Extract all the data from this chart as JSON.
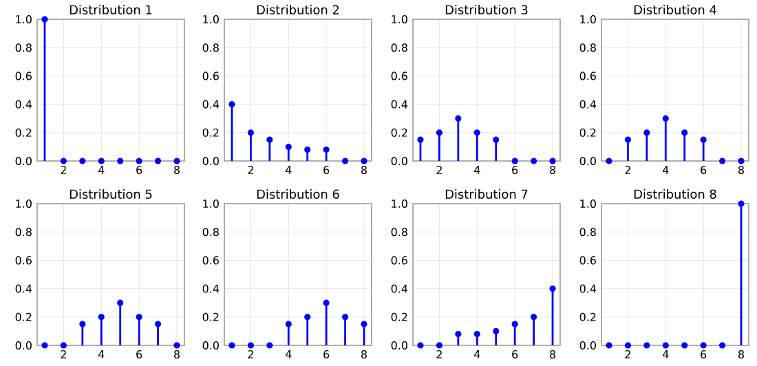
{
  "chart_data": [
    {
      "type": "lollipop",
      "title": "Distribution 1",
      "x": [
        1,
        2,
        3,
        4,
        5,
        6,
        7,
        8
      ],
      "values": [
        1.0,
        0,
        0,
        0,
        0,
        0,
        0,
        0
      ],
      "color": "#0000ff",
      "marker": "circle",
      "xlim": [
        0.6,
        8.4
      ],
      "xticks": [
        2,
        4,
        6,
        8
      ],
      "ylim": [
        0,
        1
      ],
      "yticks": [
        {
          "value": 0,
          "label": "0.0"
        },
        {
          "value": 0.2,
          "label": "0.2"
        },
        {
          "value": 0.4,
          "label": "0.4"
        },
        {
          "value": 0.6,
          "label": "0.6"
        },
        {
          "value": 0.8,
          "label": "0.8"
        },
        {
          "value": 1,
          "label": "1.0"
        }
      ],
      "grid": true
    },
    {
      "type": "lollipop",
      "title": "Distribution 2",
      "x": [
        1,
        2,
        3,
        4,
        5,
        6,
        7,
        8
      ],
      "values": [
        0.4,
        0.2,
        0.15,
        0.1,
        0.08,
        0.08,
        0,
        0
      ],
      "color": "#0000ff",
      "marker": "circle",
      "xlim": [
        0.6,
        8.4
      ],
      "xticks": [
        2,
        4,
        6,
        8
      ],
      "ylim": [
        0,
        1
      ],
      "yticks": [
        {
          "value": 0,
          "label": "0.0"
        },
        {
          "value": 0.2,
          "label": "0.2"
        },
        {
          "value": 0.4,
          "label": "0.4"
        },
        {
          "value": 0.6,
          "label": "0.6"
        },
        {
          "value": 0.8,
          "label": "0.8"
        },
        {
          "value": 1,
          "label": "1.0"
        }
      ],
      "grid": true
    },
    {
      "type": "lollipop",
      "title": "Distribution 3",
      "x": [
        1,
        2,
        3,
        4,
        5,
        6,
        7,
        8
      ],
      "values": [
        0.15,
        0.2,
        0.3,
        0.2,
        0.15,
        0,
        0,
        0
      ],
      "color": "#0000ff",
      "marker": "circle",
      "xlim": [
        0.6,
        8.4
      ],
      "xticks": [
        2,
        4,
        6,
        8
      ],
      "ylim": [
        0,
        1
      ],
      "yticks": [
        {
          "value": 0,
          "label": "0.0"
        },
        {
          "value": 0.2,
          "label": "0.2"
        },
        {
          "value": 0.4,
          "label": "0.4"
        },
        {
          "value": 0.6,
          "label": "0.6"
        },
        {
          "value": 0.8,
          "label": "0.8"
        },
        {
          "value": 1,
          "label": "1.0"
        }
      ],
      "grid": true
    },
    {
      "type": "lollipop",
      "title": "Distribution 4",
      "x": [
        1,
        2,
        3,
        4,
        5,
        6,
        7,
        8
      ],
      "values": [
        0,
        0.15,
        0.2,
        0.3,
        0.2,
        0.15,
        0,
        0
      ],
      "color": "#0000ff",
      "marker": "circle",
      "xlim": [
        0.6,
        8.4
      ],
      "xticks": [
        2,
        4,
        6,
        8
      ],
      "ylim": [
        0,
        1
      ],
      "yticks": [
        {
          "value": 0,
          "label": "0.0"
        },
        {
          "value": 0.2,
          "label": "0.2"
        },
        {
          "value": 0.4,
          "label": "0.4"
        },
        {
          "value": 0.6,
          "label": "0.6"
        },
        {
          "value": 0.8,
          "label": "0.8"
        },
        {
          "value": 1,
          "label": "1.0"
        }
      ],
      "grid": true
    },
    {
      "type": "lollipop",
      "title": "Distribution 5",
      "x": [
        1,
        2,
        3,
        4,
        5,
        6,
        7,
        8
      ],
      "values": [
        0,
        0,
        0.15,
        0.2,
        0.3,
        0.2,
        0.15,
        0
      ],
      "color": "#0000ff",
      "marker": "circle",
      "xlim": [
        0.6,
        8.4
      ],
      "xticks": [
        2,
        4,
        6,
        8
      ],
      "ylim": [
        0,
        1
      ],
      "yticks": [
        {
          "value": 0,
          "label": "0.0"
        },
        {
          "value": 0.2,
          "label": "0.2"
        },
        {
          "value": 0.4,
          "label": "0.4"
        },
        {
          "value": 0.6,
          "label": "0.6"
        },
        {
          "value": 0.8,
          "label": "0.8"
        },
        {
          "value": 1,
          "label": "1.0"
        }
      ],
      "grid": true
    },
    {
      "type": "lollipop",
      "title": "Distribution 6",
      "x": [
        1,
        2,
        3,
        4,
        5,
        6,
        7,
        8
      ],
      "values": [
        0,
        0,
        0,
        0.15,
        0.2,
        0.3,
        0.2,
        0.15
      ],
      "color": "#0000ff",
      "marker": "circle",
      "xlim": [
        0.6,
        8.4
      ],
      "xticks": [
        2,
        4,
        6,
        8
      ],
      "ylim": [
        0,
        1
      ],
      "yticks": [
        {
          "value": 0,
          "label": "0.0"
        },
        {
          "value": 0.2,
          "label": "0.2"
        },
        {
          "value": 0.4,
          "label": "0.4"
        },
        {
          "value": 0.6,
          "label": "0.6"
        },
        {
          "value": 0.8,
          "label": "0.8"
        },
        {
          "value": 1,
          "label": "1.0"
        }
      ],
      "grid": true
    },
    {
      "type": "lollipop",
      "title": "Distribution 7",
      "x": [
        1,
        2,
        3,
        4,
        5,
        6,
        7,
        8
      ],
      "values": [
        0,
        0,
        0.08,
        0.08,
        0.1,
        0.15,
        0.2,
        0.4
      ],
      "color": "#0000ff",
      "marker": "circle",
      "xlim": [
        0.6,
        8.4
      ],
      "xticks": [
        2,
        4,
        6,
        8
      ],
      "ylim": [
        0,
        1
      ],
      "yticks": [
        {
          "value": 0,
          "label": "0.0"
        },
        {
          "value": 0.2,
          "label": "0.2"
        },
        {
          "value": 0.4,
          "label": "0.4"
        },
        {
          "value": 0.6,
          "label": "0.6"
        },
        {
          "value": 0.8,
          "label": "0.8"
        },
        {
          "value": 1,
          "label": "1.0"
        }
      ],
      "grid": true
    },
    {
      "type": "lollipop",
      "title": "Distribution 8",
      "x": [
        1,
        2,
        3,
        4,
        5,
        6,
        7,
        8
      ],
      "values": [
        0,
        0,
        0,
        0,
        0,
        0,
        0,
        1.0
      ],
      "color": "#0000ff",
      "marker": "circle",
      "xlim": [
        0.6,
        8.4
      ],
      "xticks": [
        2,
        4,
        6,
        8
      ],
      "ylim": [
        0,
        1
      ],
      "yticks": [
        {
          "value": 0,
          "label": "0.0"
        },
        {
          "value": 0.2,
          "label": "0.2"
        },
        {
          "value": 0.4,
          "label": "0.4"
        },
        {
          "value": 0.6,
          "label": "0.6"
        },
        {
          "value": 0.8,
          "label": "0.8"
        },
        {
          "value": 1,
          "label": "1.0"
        }
      ],
      "grid": true
    }
  ]
}
